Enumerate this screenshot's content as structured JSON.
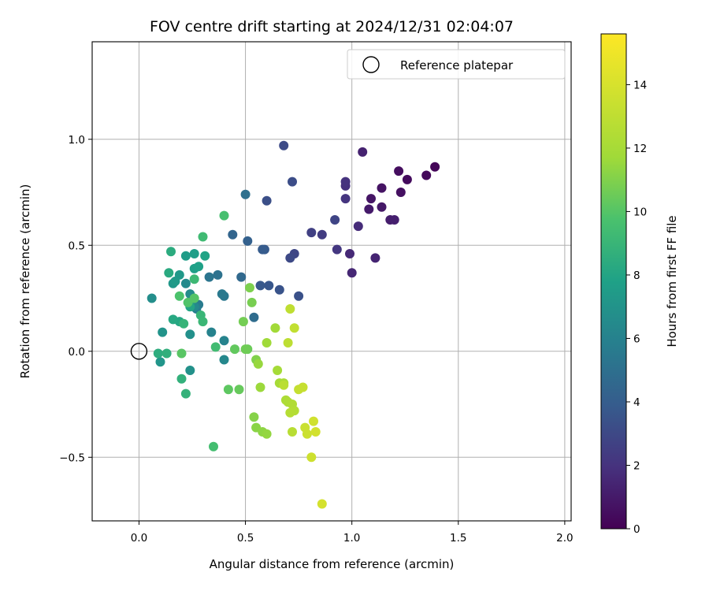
{
  "chart_data": {
    "type": "scatter",
    "title": "FOV centre drift starting at 2024/12/31 02:04:07",
    "xlabel": "Angular distance from reference (arcmin)",
    "ylabel": "Rotation from reference (arcmin)",
    "xlim": [
      -0.22,
      2.03
    ],
    "ylim": [
      -0.8,
      1.46
    ],
    "xticks": [
      0.0,
      0.5,
      1.0,
      1.5,
      2.0
    ],
    "xtick_labels": [
      "0.0",
      "0.5",
      "1.0",
      "1.5",
      "2.0"
    ],
    "yticks": [
      -0.5,
      0.0,
      0.5,
      1.0
    ],
    "ytick_labels": [
      "−0.5",
      "0.0",
      "0.5",
      "1.0"
    ],
    "grid": true,
    "legend": {
      "placement": "top-right",
      "entries": [
        "Reference platepar"
      ]
    },
    "colorbar": {
      "label": "Hours from first FF file",
      "range": [
        0,
        15.6
      ],
      "ticks": [
        0,
        2,
        4,
        6,
        8,
        10,
        12,
        14
      ],
      "tick_labels": [
        "0",
        "2",
        "4",
        "6",
        "8",
        "10",
        "12",
        "14"
      ],
      "colormap": "viridis"
    },
    "reference_point": {
      "x": 0.0,
      "y": 0.0,
      "label": "Reference platepar"
    },
    "colors": {
      "grid": "#b0b0b0",
      "reference_marker_edge": "#000000"
    },
    "points": [
      [
        1.39,
        0.87,
        0.2
      ],
      [
        1.35,
        0.83,
        0.3
      ],
      [
        1.26,
        0.81,
        0.4
      ],
      [
        1.22,
        0.85,
        0.5
      ],
      [
        1.23,
        0.75,
        0.6
      ],
      [
        1.14,
        0.77,
        0.7
      ],
      [
        1.09,
        0.72,
        0.8
      ],
      [
        1.14,
        0.68,
        0.9
      ],
      [
        1.08,
        0.67,
        1.0
      ],
      [
        1.18,
        0.62,
        1.1
      ],
      [
        1.2,
        0.62,
        1.2
      ],
      [
        1.05,
        0.94,
        1.3
      ],
      [
        1.11,
        0.44,
        1.4
      ],
      [
        1.0,
        0.37,
        1.5
      ],
      [
        0.99,
        0.46,
        1.6
      ],
      [
        1.03,
        0.59,
        1.7
      ],
      [
        0.97,
        0.78,
        1.9
      ],
      [
        0.97,
        0.8,
        2.0
      ],
      [
        0.97,
        0.72,
        2.1
      ],
      [
        0.93,
        0.48,
        2.2
      ],
      [
        0.86,
        0.55,
        2.4
      ],
      [
        0.81,
        0.56,
        2.6
      ],
      [
        0.92,
        0.62,
        2.8
      ],
      [
        0.73,
        0.46,
        2.9
      ],
      [
        0.71,
        0.44,
        3.0
      ],
      [
        0.68,
        0.97,
        3.1
      ],
      [
        0.72,
        0.8,
        3.2
      ],
      [
        0.6,
        0.71,
        3.3
      ],
      [
        0.75,
        0.26,
        3.4
      ],
      [
        0.66,
        0.29,
        3.5
      ],
      [
        0.61,
        0.31,
        3.6
      ],
      [
        0.57,
        0.31,
        3.7
      ],
      [
        0.59,
        0.48,
        3.8
      ],
      [
        0.58,
        0.48,
        3.9
      ],
      [
        0.51,
        0.52,
        4.2
      ],
      [
        0.44,
        0.55,
        4.4
      ],
      [
        0.48,
        0.35,
        4.6
      ],
      [
        0.54,
        0.16,
        4.8
      ],
      [
        0.5,
        0.74,
        5.0
      ],
      [
        0.37,
        0.36,
        5.1
      ],
      [
        0.33,
        0.35,
        5.3
      ],
      [
        0.4,
        0.26,
        5.4
      ],
      [
        0.39,
        0.27,
        5.5
      ],
      [
        0.28,
        0.22,
        5.6
      ],
      [
        0.27,
        0.2,
        5.8
      ],
      [
        0.34,
        0.09,
        6.0
      ],
      [
        0.4,
        0.05,
        6.1
      ],
      [
        0.4,
        -0.04,
        6.3
      ],
      [
        0.26,
        0.21,
        6.4
      ],
      [
        0.22,
        0.32,
        6.5
      ],
      [
        0.24,
        0.27,
        6.6
      ],
      [
        0.06,
        0.25,
        6.7
      ],
      [
        0.24,
        0.08,
        6.8
      ],
      [
        0.24,
        -0.09,
        6.9
      ],
      [
        0.11,
        0.09,
        7.0
      ],
      [
        0.1,
        -0.05,
        7.1
      ],
      [
        0.16,
        0.32,
        7.2
      ],
      [
        0.19,
        0.36,
        7.3
      ],
      [
        0.17,
        0.33,
        7.4
      ],
      [
        0.22,
        0.45,
        7.5
      ],
      [
        0.26,
        0.46,
        7.6
      ],
      [
        0.26,
        0.39,
        7.7
      ],
      [
        0.28,
        0.4,
        7.8
      ],
      [
        0.31,
        0.45,
        7.9
      ],
      [
        0.24,
        0.21,
        8.0
      ],
      [
        0.19,
        0.14,
        8.1
      ],
      [
        0.16,
        0.15,
        8.2
      ],
      [
        0.14,
        0.37,
        8.3
      ],
      [
        0.15,
        0.47,
        8.4
      ],
      [
        0.09,
        -0.01,
        8.5
      ],
      [
        0.13,
        -0.01,
        8.6
      ],
      [
        0.2,
        -0.13,
        8.7
      ],
      [
        0.22,
        -0.2,
        8.8
      ],
      [
        0.21,
        0.13,
        8.9
      ],
      [
        0.29,
        0.17,
        9.0
      ],
      [
        0.3,
        0.14,
        9.1
      ],
      [
        0.26,
        0.34,
        9.2
      ],
      [
        0.3,
        0.54,
        9.3
      ],
      [
        0.36,
        0.02,
        9.4
      ],
      [
        0.35,
        -0.45,
        9.5
      ],
      [
        0.4,
        0.64,
        9.6
      ],
      [
        0.19,
        0.26,
        9.8
      ],
      [
        0.23,
        0.23,
        9.9
      ],
      [
        0.26,
        0.25,
        10.0
      ],
      [
        0.2,
        -0.01,
        10.1
      ],
      [
        0.42,
        -0.18,
        10.2
      ],
      [
        0.45,
        0.01,
        10.3
      ],
      [
        0.47,
        -0.18,
        10.4
      ],
      [
        0.51,
        0.01,
        10.5
      ],
      [
        0.5,
        0.01,
        10.6
      ],
      [
        0.49,
        0.14,
        10.7
      ],
      [
        0.53,
        0.23,
        10.8
      ],
      [
        0.52,
        0.3,
        10.9
      ],
      [
        0.55,
        -0.04,
        11.0
      ],
      [
        0.54,
        -0.31,
        11.1
      ],
      [
        0.55,
        -0.36,
        11.2
      ],
      [
        0.58,
        -0.38,
        11.3
      ],
      [
        0.6,
        -0.39,
        11.4
      ],
      [
        0.56,
        -0.06,
        11.5
      ],
      [
        0.57,
        -0.17,
        11.6
      ],
      [
        0.6,
        0.04,
        11.7
      ],
      [
        0.64,
        0.11,
        11.8
      ],
      [
        0.65,
        -0.09,
        11.9
      ],
      [
        0.66,
        -0.15,
        12.0
      ],
      [
        0.68,
        -0.15,
        12.1
      ],
      [
        0.69,
        -0.23,
        12.2
      ],
      [
        0.7,
        -0.24,
        12.3
      ],
      [
        0.72,
        -0.25,
        12.4
      ],
      [
        0.73,
        -0.28,
        12.5
      ],
      [
        0.71,
        -0.29,
        12.6
      ],
      [
        0.72,
        -0.38,
        12.7
      ],
      [
        0.68,
        -0.16,
        12.8
      ],
      [
        0.7,
        0.04,
        12.9
      ],
      [
        0.71,
        0.2,
        13.0
      ],
      [
        0.73,
        0.11,
        13.1
      ],
      [
        0.75,
        -0.18,
        13.2
      ],
      [
        0.77,
        -0.17,
        13.3
      ],
      [
        0.78,
        -0.36,
        13.4
      ],
      [
        0.79,
        -0.39,
        13.5
      ],
      [
        0.81,
        -0.5,
        13.6
      ],
      [
        0.82,
        -0.33,
        13.7
      ],
      [
        0.83,
        -0.38,
        13.8
      ],
      [
        0.86,
        -0.72,
        13.9
      ]
    ]
  }
}
